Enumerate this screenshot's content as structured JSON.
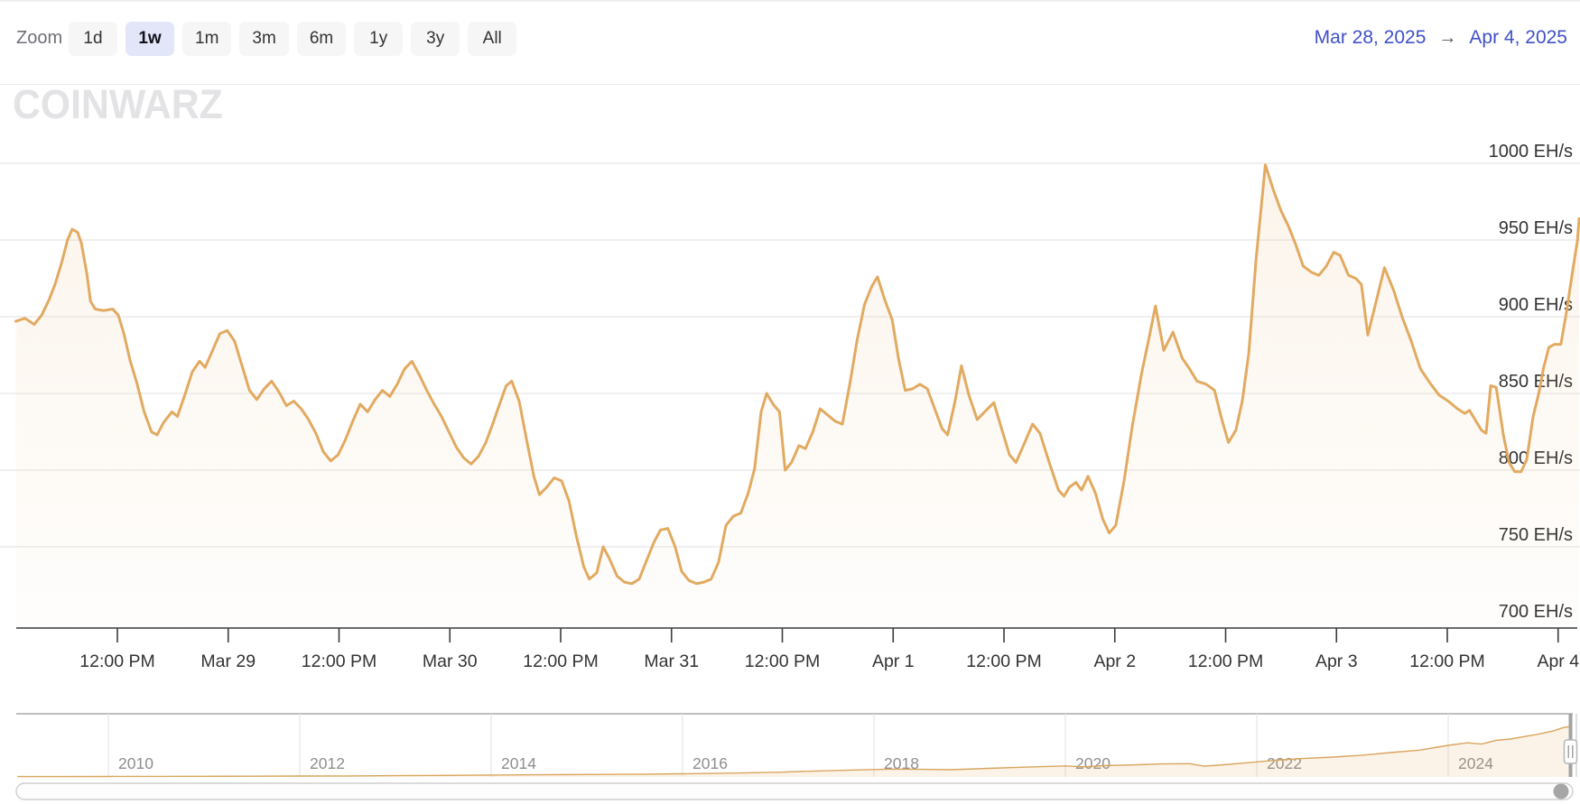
{
  "toolbar": {
    "zoom_label": "Zoom",
    "buttons": [
      {
        "label": "1d",
        "selected": false
      },
      {
        "label": "1w",
        "selected": true
      },
      {
        "label": "1m",
        "selected": false
      },
      {
        "label": "3m",
        "selected": false
      },
      {
        "label": "6m",
        "selected": false
      },
      {
        "label": "1y",
        "selected": false
      },
      {
        "label": "3y",
        "selected": false
      },
      {
        "label": "All",
        "selected": false
      }
    ],
    "range": {
      "from": "Mar 28, 2025",
      "arrow": "→",
      "to": "Apr 4, 2025"
    }
  },
  "watermark": "CoinWarz",
  "colors": {
    "accent_blue": "#3F50C7",
    "selected_button_bg": "#E3E5F9",
    "button_bg": "#F6F6F7",
    "series_line": "#E2AA61",
    "series_fill_top": "rgba(227,172,99,0.13)",
    "series_fill_bottom": "rgba(227,172,99,0.02)",
    "gridline": "#E8E8E8",
    "axis": "#3C3C3C",
    "axis_label": "#333333",
    "navigator_label": "#8E8E8E",
    "watermark_gray": "#E3E3E6"
  },
  "chart_data": {
    "type": "area",
    "title": "",
    "unit": "EH/s",
    "xlabel": "",
    "ylabel": "",
    "ylim": [
      700,
      1000
    ],
    "grid": true,
    "y_ticks": [
      {
        "label": "1000 EH/s",
        "value": 1000
      },
      {
        "label": "950 EH/s",
        "value": 950
      },
      {
        "label": "900 EH/s",
        "value": 900
      },
      {
        "label": "850 EH/s",
        "value": 850
      },
      {
        "label": "800 EH/s",
        "value": 800
      },
      {
        "label": "750 EH/s",
        "value": 750
      },
      {
        "label": "700 EH/s",
        "value": 700
      }
    ],
    "x_ticks": [
      {
        "label": "12:00 PM",
        "t": 12
      },
      {
        "label": "Mar 29",
        "t": 24
      },
      {
        "label": "12:00 PM",
        "t": 36
      },
      {
        "label": "Mar 30",
        "t": 48
      },
      {
        "label": "12:00 PM",
        "t": 60
      },
      {
        "label": "Mar 31",
        "t": 72
      },
      {
        "label": "12:00 PM",
        "t": 84
      },
      {
        "label": "Apr 1",
        "t": 96
      },
      {
        "label": "12:00 PM",
        "t": 108
      },
      {
        "label": "Apr 2",
        "t": 120
      },
      {
        "label": "12:00 PM",
        "t": 132
      },
      {
        "label": "Apr 3",
        "t": 144
      },
      {
        "label": "12:00 PM",
        "t": 156
      },
      {
        "label": "Apr 4",
        "t": 168
      }
    ],
    "points_format": "[hours since Mar 28 2025 00:00, hashrate EH/s]",
    "points": [
      [
        1,
        897
      ],
      [
        2,
        899
      ],
      [
        3,
        895
      ],
      [
        3.8,
        901
      ],
      [
        4.6,
        911
      ],
      [
        5.3,
        922
      ],
      [
        6,
        936
      ],
      [
        6.6,
        950
      ],
      [
        7.1,
        957
      ],
      [
        7.7,
        955
      ],
      [
        8.1,
        948
      ],
      [
        8.7,
        928
      ],
      [
        9.1,
        910
      ],
      [
        9.6,
        905
      ],
      [
        10.5,
        904
      ],
      [
        11.5,
        905
      ],
      [
        12.1,
        901
      ],
      [
        12.7,
        889
      ],
      [
        13.4,
        871
      ],
      [
        14.1,
        857
      ],
      [
        14.9,
        838
      ],
      [
        15.7,
        825
      ],
      [
        16.3,
        823
      ],
      [
        17,
        831
      ],
      [
        17.9,
        838
      ],
      [
        18.5,
        835
      ],
      [
        19.3,
        849
      ],
      [
        20.1,
        864
      ],
      [
        20.9,
        871
      ],
      [
        21.5,
        867
      ],
      [
        22.3,
        878
      ],
      [
        23.1,
        889
      ],
      [
        23.9,
        891
      ],
      [
        24.7,
        884
      ],
      [
        25.5,
        868
      ],
      [
        26.3,
        852
      ],
      [
        27.1,
        846
      ],
      [
        27.9,
        853
      ],
      [
        28.7,
        858
      ],
      [
        29.5,
        851
      ],
      [
        30.3,
        842
      ],
      [
        31.1,
        845
      ],
      [
        31.9,
        840
      ],
      [
        32.7,
        833
      ],
      [
        33.5,
        824
      ],
      [
        34.3,
        812
      ],
      [
        35.1,
        806
      ],
      [
        35.9,
        810
      ],
      [
        36.7,
        820
      ],
      [
        37.5,
        832
      ],
      [
        38.3,
        843
      ],
      [
        39.1,
        838
      ],
      [
        39.9,
        846
      ],
      [
        40.7,
        852
      ],
      [
        41.5,
        848
      ],
      [
        42.3,
        856
      ],
      [
        43.1,
        866
      ],
      [
        43.9,
        871
      ],
      [
        44.7,
        862
      ],
      [
        45.5,
        852
      ],
      [
        46.3,
        843
      ],
      [
        47.1,
        835
      ],
      [
        47.9,
        825
      ],
      [
        48.7,
        815
      ],
      [
        49.5,
        808
      ],
      [
        50.3,
        804
      ],
      [
        51.1,
        809
      ],
      [
        51.9,
        818
      ],
      [
        52.7,
        831
      ],
      [
        53.5,
        845
      ],
      [
        54.1,
        855
      ],
      [
        54.7,
        858
      ],
      [
        55.5,
        845
      ],
      [
        56.3,
        820
      ],
      [
        57.1,
        796
      ],
      [
        57.7,
        784
      ],
      [
        58.5,
        789
      ],
      [
        59.3,
        795
      ],
      [
        60.1,
        793
      ],
      [
        60.9,
        780
      ],
      [
        61.7,
        757
      ],
      [
        62.5,
        737
      ],
      [
        63.1,
        729
      ],
      [
        63.9,
        733
      ],
      [
        64.6,
        750
      ],
      [
        65.3,
        742
      ],
      [
        66.1,
        731
      ],
      [
        66.9,
        727
      ],
      [
        67.7,
        726
      ],
      [
        68.5,
        729
      ],
      [
        69.3,
        741
      ],
      [
        70.1,
        753
      ],
      [
        70.8,
        761
      ],
      [
        71.6,
        762
      ],
      [
        72.4,
        750
      ],
      [
        73.1,
        734
      ],
      [
        73.9,
        728
      ],
      [
        74.7,
        726
      ],
      [
        75.5,
        727
      ],
      [
        76.3,
        729
      ],
      [
        77.1,
        740
      ],
      [
        77.9,
        764
      ],
      [
        78.7,
        770
      ],
      [
        79.5,
        772
      ],
      [
        80.3,
        785
      ],
      [
        81,
        801
      ],
      [
        81.7,
        838
      ],
      [
        82.3,
        850
      ],
      [
        83,
        843
      ],
      [
        83.7,
        838
      ],
      [
        84.3,
        800
      ],
      [
        85,
        805
      ],
      [
        85.8,
        816
      ],
      [
        86.5,
        814
      ],
      [
        87.3,
        825
      ],
      [
        88.1,
        840
      ],
      [
        88.9,
        836
      ],
      [
        89.7,
        832
      ],
      [
        90.5,
        830
      ],
      [
        91.3,
        856
      ],
      [
        92.1,
        885
      ],
      [
        92.9,
        908
      ],
      [
        93.7,
        920
      ],
      [
        94.3,
        926
      ],
      [
        95.1,
        911
      ],
      [
        95.9,
        898
      ],
      [
        96.6,
        872
      ],
      [
        97.3,
        852
      ],
      [
        98.1,
        853
      ],
      [
        98.9,
        856
      ],
      [
        99.7,
        853
      ],
      [
        100.5,
        840
      ],
      [
        101.3,
        827
      ],
      [
        101.9,
        823
      ],
      [
        102.7,
        845
      ],
      [
        103.4,
        868
      ],
      [
        104.2,
        849
      ],
      [
        105.1,
        833
      ],
      [
        105.9,
        838
      ],
      [
        106.9,
        844
      ],
      [
        107.7,
        828
      ],
      [
        108.6,
        810
      ],
      [
        109.3,
        805
      ],
      [
        110.1,
        816
      ],
      [
        111.1,
        830
      ],
      [
        111.9,
        824
      ],
      [
        112.9,
        805
      ],
      [
        113.9,
        787
      ],
      [
        114.5,
        783
      ],
      [
        115.1,
        789
      ],
      [
        115.8,
        792
      ],
      [
        116.4,
        787
      ],
      [
        117.1,
        796
      ],
      [
        117.9,
        785
      ],
      [
        118.7,
        768
      ],
      [
        119.4,
        759
      ],
      [
        120.1,
        764
      ],
      [
        121,
        793
      ],
      [
        121.9,
        829
      ],
      [
        122.9,
        863
      ],
      [
        123.7,
        886
      ],
      [
        124.4,
        907
      ],
      [
        125.3,
        878
      ],
      [
        126.3,
        890
      ],
      [
        127.3,
        873
      ],
      [
        128.1,
        866
      ],
      [
        128.9,
        858
      ],
      [
        129.9,
        856
      ],
      [
        130.8,
        852
      ],
      [
        131.5,
        835
      ],
      [
        132.3,
        818
      ],
      [
        133.1,
        826
      ],
      [
        133.8,
        845
      ],
      [
        134.5,
        876
      ],
      [
        135.3,
        938
      ],
      [
        136.3,
        999
      ],
      [
        137.2,
        982
      ],
      [
        138,
        969
      ],
      [
        138.8,
        959
      ],
      [
        139.6,
        947
      ],
      [
        140.4,
        933
      ],
      [
        141.3,
        929
      ],
      [
        142.1,
        927
      ],
      [
        142.9,
        933
      ],
      [
        143.7,
        942
      ],
      [
        144.4,
        940
      ],
      [
        145.3,
        927
      ],
      [
        146.1,
        925
      ],
      [
        146.7,
        921
      ],
      [
        147.4,
        888
      ],
      [
        148.3,
        910
      ],
      [
        149.2,
        932
      ],
      [
        150.2,
        917
      ],
      [
        151.1,
        900
      ],
      [
        152.1,
        884
      ],
      [
        153.1,
        866
      ],
      [
        154.1,
        857
      ],
      [
        155.1,
        849
      ],
      [
        156.1,
        845
      ],
      [
        157.1,
        840
      ],
      [
        157.9,
        837
      ],
      [
        158.4,
        839
      ],
      [
        159,
        833
      ],
      [
        159.7,
        826
      ],
      [
        160.2,
        824
      ],
      [
        160.7,
        855
      ],
      [
        161.3,
        854
      ],
      [
        162.1,
        822
      ],
      [
        162.7,
        805
      ],
      [
        163.3,
        799
      ],
      [
        164,
        799
      ],
      [
        164.6,
        807
      ],
      [
        165.3,
        835
      ],
      [
        165.9,
        850
      ],
      [
        166.4,
        866
      ],
      [
        167,
        880
      ],
      [
        167.6,
        882
      ],
      [
        168.3,
        882
      ],
      [
        168.9,
        903
      ],
      [
        169.5,
        927
      ],
      [
        170.1,
        950
      ],
      [
        170.6,
        964
      ]
    ]
  },
  "navigator": {
    "years": [
      {
        "label": "2010",
        "year": 2010
      },
      {
        "label": "2012",
        "year": 2012
      },
      {
        "label": "2014",
        "year": 2014
      },
      {
        "label": "2016",
        "year": 2016
      },
      {
        "label": "2018",
        "year": 2018
      },
      {
        "label": "2020",
        "year": 2020
      },
      {
        "label": "2022",
        "year": 2022
      },
      {
        "label": "2024",
        "year": 2024
      }
    ],
    "points_format": "[year, fraction of navigator height]",
    "points": [
      [
        2009.05,
        0.005
      ],
      [
        2009.5,
        0.006
      ],
      [
        2010,
        0.007
      ],
      [
        2010.5,
        0.008
      ],
      [
        2011,
        0.01
      ],
      [
        2011.5,
        0.012
      ],
      [
        2012,
        0.014
      ],
      [
        2012.5,
        0.016
      ],
      [
        2013,
        0.02
      ],
      [
        2013.5,
        0.024
      ],
      [
        2014,
        0.03
      ],
      [
        2014.5,
        0.034
      ],
      [
        2015,
        0.038
      ],
      [
        2015.5,
        0.042
      ],
      [
        2016,
        0.05
      ],
      [
        2016.5,
        0.06
      ],
      [
        2017,
        0.075
      ],
      [
        2017.4,
        0.095
      ],
      [
        2017.8,
        0.11
      ],
      [
        2018.2,
        0.125
      ],
      [
        2018.5,
        0.12
      ],
      [
        2018.8,
        0.115
      ],
      [
        2019.2,
        0.135
      ],
      [
        2019.6,
        0.155
      ],
      [
        2020,
        0.175
      ],
      [
        2020.2,
        0.16
      ],
      [
        2020.4,
        0.178
      ],
      [
        2020.7,
        0.19
      ],
      [
        2021,
        0.205
      ],
      [
        2021.3,
        0.21
      ],
      [
        2021.45,
        0.17
      ],
      [
        2021.6,
        0.185
      ],
      [
        2021.9,
        0.225
      ],
      [
        2022.2,
        0.265
      ],
      [
        2022.5,
        0.295
      ],
      [
        2022.8,
        0.315
      ],
      [
        2023.1,
        0.345
      ],
      [
        2023.4,
        0.385
      ],
      [
        2023.7,
        0.425
      ],
      [
        2024,
        0.5
      ],
      [
        2024.2,
        0.54
      ],
      [
        2024.35,
        0.52
      ],
      [
        2024.5,
        0.58
      ],
      [
        2024.65,
        0.6
      ],
      [
        2024.8,
        0.64
      ],
      [
        2024.95,
        0.68
      ],
      [
        2025.1,
        0.73
      ],
      [
        2025.2,
        0.78
      ],
      [
        2025.28,
        0.8
      ]
    ]
  }
}
